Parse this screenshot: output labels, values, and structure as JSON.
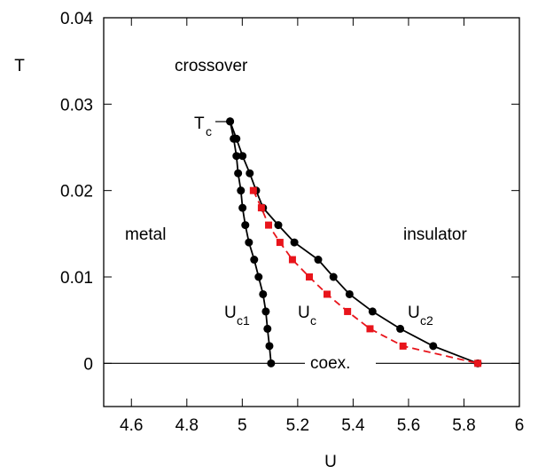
{
  "chart_data": {
    "type": "line",
    "xlabel": "U",
    "ylabel": "T",
    "xlim": [
      4.5,
      6
    ],
    "ylim": [
      -0.005,
      0.04
    ],
    "xticks": [
      4.6,
      4.8,
      5,
      5.2,
      5.4,
      5.6,
      5.8,
      6
    ],
    "yticks": [
      0,
      0.01,
      0.02,
      0.03,
      0.04
    ],
    "hline": 0,
    "annotations": {
      "crossover": "crossover",
      "metal": "metal",
      "insulator": "insulator",
      "coex": "coex.",
      "tc": {
        "text": "T",
        "sub": "c"
      },
      "uc1": {
        "text": "U",
        "sub": "c1"
      },
      "uc": {
        "text": "U",
        "sub": "c"
      },
      "uc2": {
        "text": "U",
        "sub": "c2"
      }
    },
    "series": [
      {
        "color": "#000000",
        "marker": "circle",
        "dash": false,
        "x": [
          4.956,
          4.969,
          4.979,
          4.985,
          4.995,
          5.001,
          5.011,
          5.024,
          5.043,
          5.059,
          5.075,
          5.085,
          5.091,
          5.098,
          5.104
        ],
        "values": [
          0.028,
          0.026,
          0.024,
          0.022,
          0.02,
          0.018,
          0.016,
          0.014,
          0.012,
          0.01,
          0.008,
          0.006,
          0.004,
          0.002,
          0
        ]
      },
      {
        "color": "#000000",
        "marker": "circle",
        "dash": false,
        "x": [
          4.956,
          4.979,
          5.001,
          5.027,
          5.05,
          5.075,
          5.13,
          5.188,
          5.274,
          5.329,
          5.387,
          5.47,
          5.57,
          5.689,
          5.85
        ],
        "values": [
          0.028,
          0.026,
          0.024,
          0.022,
          0.02,
          0.018,
          0.016,
          0.014,
          0.012,
          0.01,
          0.008,
          0.006,
          0.004,
          0.002,
          0
        ]
      },
      {
        "color": "#e8141b",
        "marker": "square",
        "dash": true,
        "x": [
          5.04,
          5.069,
          5.095,
          5.136,
          5.181,
          5.242,
          5.306,
          5.38,
          5.461,
          5.58,
          5.85
        ],
        "values": [
          0.02,
          0.018,
          0.016,
          0.014,
          0.012,
          0.01,
          0.008,
          0.006,
          0.004,
          0.002,
          0
        ]
      }
    ]
  }
}
